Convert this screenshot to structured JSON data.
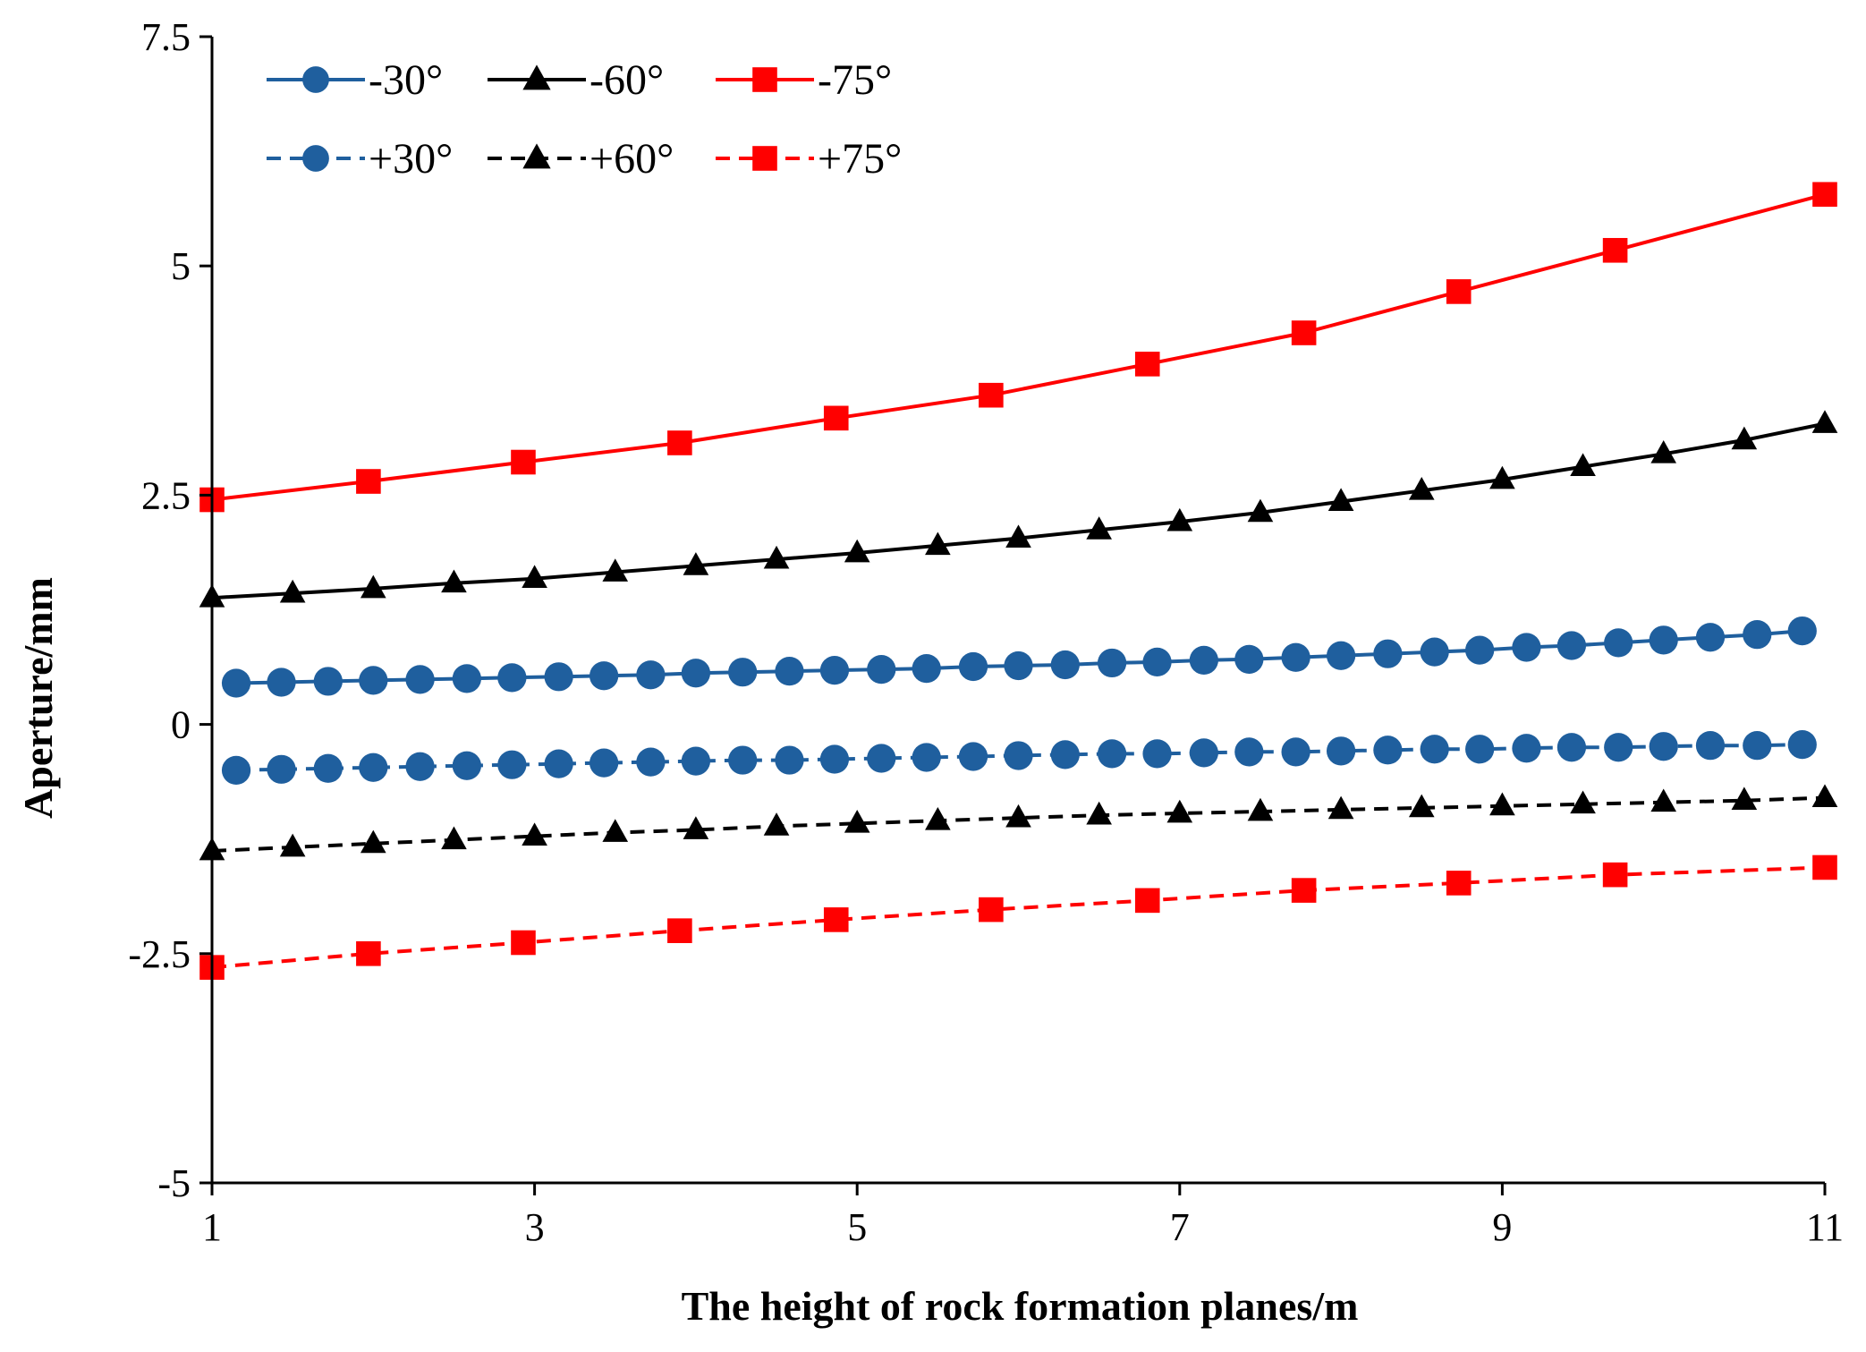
{
  "chart_data": {
    "type": "line",
    "title": "",
    "xlabel": "The height of rock formation planes/m",
    "ylabel": "Aperture/mm",
    "xlim": [
      1,
      11
    ],
    "ylim": [
      -5,
      7.5
    ],
    "xticks": [
      1,
      3,
      5,
      7,
      9,
      11
    ],
    "xtick_labels": [
      "1",
      "3",
      "5",
      "7",
      "9",
      "11"
    ],
    "yticks": [
      -5,
      -2.5,
      0,
      2.5,
      5,
      7.5
    ],
    "ytick_labels": [
      "-5",
      "-2.5",
      "0",
      "2.5",
      "5",
      "7.5"
    ],
    "grid": false,
    "legend_position": "top-left",
    "series": [
      {
        "name": "-30°",
        "color": "#1f5f9e",
        "line_style": "solid",
        "marker": "circle",
        "x": [
          1.15,
          1.43,
          1.72,
          2.0,
          2.29,
          2.58,
          2.86,
          3.15,
          3.43,
          3.72,
          4.0,
          4.29,
          4.58,
          4.86,
          5.15,
          5.43,
          5.72,
          6.0,
          6.29,
          6.58,
          6.86,
          7.15,
          7.43,
          7.72,
          8.0,
          8.29,
          8.58,
          8.86,
          9.15,
          9.43,
          9.72,
          10.0,
          10.29,
          10.58,
          10.86
        ],
        "y": [
          0.45,
          0.46,
          0.47,
          0.48,
          0.49,
          0.5,
          0.51,
          0.52,
          0.53,
          0.54,
          0.56,
          0.57,
          0.58,
          0.59,
          0.6,
          0.61,
          0.63,
          0.64,
          0.65,
          0.67,
          0.68,
          0.7,
          0.71,
          0.73,
          0.75,
          0.77,
          0.79,
          0.81,
          0.84,
          0.86,
          0.89,
          0.92,
          0.95,
          0.98,
          1.02
        ]
      },
      {
        "name": "-60°",
        "color": "#000000",
        "line_style": "solid",
        "marker": "triangle",
        "x": [
          1.0,
          1.5,
          2.0,
          2.5,
          3.0,
          3.5,
          4.0,
          4.5,
          5.0,
          5.5,
          6.0,
          6.5,
          7.0,
          7.5,
          8.0,
          8.5,
          9.0,
          9.5,
          10.0,
          10.5,
          11.0
        ],
        "y": [
          1.38,
          1.43,
          1.48,
          1.54,
          1.59,
          1.66,
          1.73,
          1.8,
          1.87,
          1.95,
          2.03,
          2.12,
          2.21,
          2.31,
          2.43,
          2.55,
          2.67,
          2.81,
          2.95,
          3.1,
          3.28
        ]
      },
      {
        "name": "-75°",
        "color": "#ff0000",
        "line_style": "solid",
        "marker": "square",
        "x": [
          1.0,
          1.97,
          2.93,
          3.9,
          4.87,
          5.83,
          6.8,
          7.77,
          8.73,
          9.7,
          11.0
        ],
        "y": [
          2.45,
          2.65,
          2.86,
          3.07,
          3.34,
          3.59,
          3.93,
          4.27,
          4.72,
          5.17,
          5.78
        ]
      },
      {
        "name": "+30°",
        "color": "#1f5f9e",
        "line_style": "dashed",
        "marker": "circle",
        "x": [
          1.15,
          1.43,
          1.72,
          2.0,
          2.29,
          2.58,
          2.86,
          3.15,
          3.43,
          3.72,
          4.0,
          4.29,
          4.58,
          4.86,
          5.15,
          5.43,
          5.72,
          6.0,
          6.29,
          6.58,
          6.86,
          7.15,
          7.43,
          7.72,
          8.0,
          8.29,
          8.58,
          8.86,
          9.15,
          9.43,
          9.72,
          10.0,
          10.29,
          10.58,
          10.86
        ],
        "y": [
          -0.5,
          -0.49,
          -0.48,
          -0.47,
          -0.46,
          -0.45,
          -0.44,
          -0.43,
          -0.42,
          -0.41,
          -0.4,
          -0.39,
          -0.39,
          -0.38,
          -0.37,
          -0.36,
          -0.35,
          -0.34,
          -0.33,
          -0.32,
          -0.32,
          -0.31,
          -0.3,
          -0.3,
          -0.29,
          -0.28,
          -0.27,
          -0.27,
          -0.26,
          -0.25,
          -0.25,
          -0.24,
          -0.23,
          -0.23,
          -0.22
        ]
      },
      {
        "name": "+60°",
        "color": "#000000",
        "line_style": "dashed",
        "marker": "triangle",
        "x": [
          1.0,
          1.5,
          2.0,
          2.5,
          3.0,
          3.5,
          4.0,
          4.5,
          5.0,
          5.5,
          6.0,
          6.5,
          7.0,
          7.5,
          8.0,
          8.5,
          9.0,
          9.5,
          10.0,
          10.5,
          11.0
        ],
        "y": [
          -1.38,
          -1.34,
          -1.3,
          -1.26,
          -1.22,
          -1.18,
          -1.15,
          -1.11,
          -1.08,
          -1.05,
          -1.02,
          -0.99,
          -0.97,
          -0.95,
          -0.93,
          -0.91,
          -0.89,
          -0.87,
          -0.85,
          -0.83,
          -0.8
        ]
      },
      {
        "name": "+75°",
        "color": "#ff0000",
        "line_style": "dashed",
        "marker": "square",
        "x": [
          1.0,
          1.97,
          2.93,
          3.9,
          4.87,
          5.83,
          6.8,
          7.77,
          8.73,
          9.7,
          11.0
        ],
        "y": [
          -2.65,
          -2.5,
          -2.38,
          -2.25,
          -2.13,
          -2.02,
          -1.92,
          -1.81,
          -1.73,
          -1.64,
          -1.56
        ]
      }
    ]
  }
}
